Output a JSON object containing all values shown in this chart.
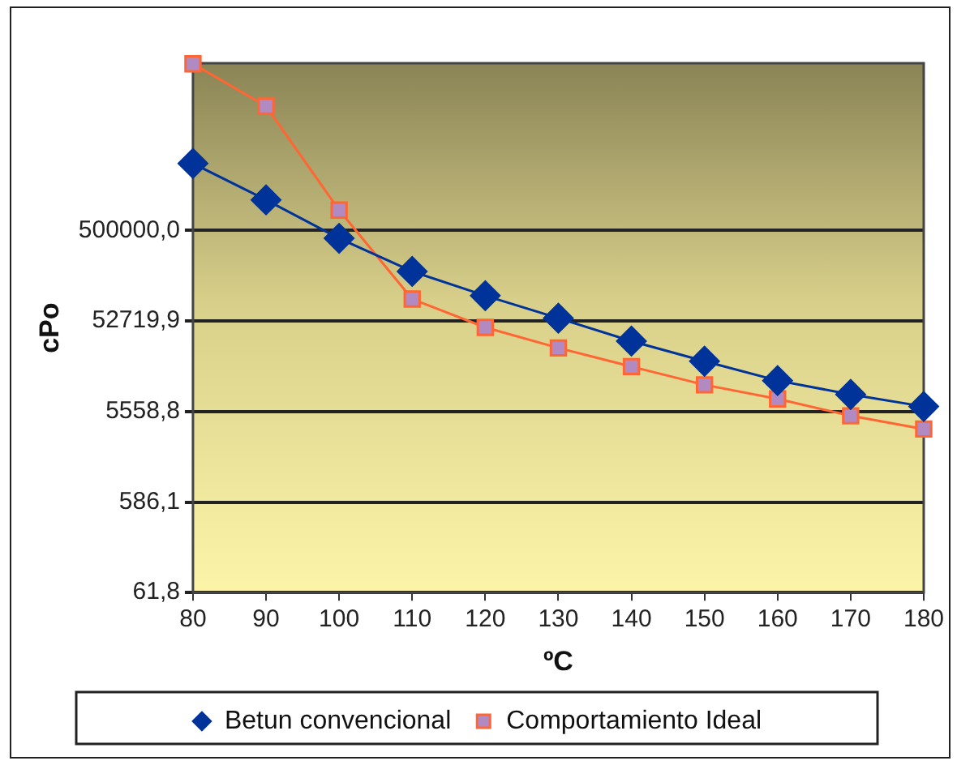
{
  "chart_data": {
    "type": "line",
    "xlabel": "ºC",
    "ylabel": "cPo",
    "categories": [
      "80",
      "90",
      "100",
      "110",
      "120",
      "130",
      "140",
      "150",
      "160",
      "170",
      "180"
    ],
    "series": [
      {
        "name": "Betun convencional",
        "color": "#003399",
        "marker": "diamond",
        "values": [
          2650000,
          1070000,
          412000,
          181000,
          99000,
          56600,
          32000,
          19400,
          12000,
          8500,
          6300
        ]
      },
      {
        "name": "Comportamiento Ideal",
        "color": "#ff6633",
        "marker": "square",
        "values": [
          31500000,
          11000000,
          830000,
          91000,
          45000,
          27000,
          17000,
          10800,
          7600,
          5000,
          3600
        ]
      }
    ],
    "log": "y",
    "ylim": [
      61.8,
      32000000
    ],
    "yticks": [
      {
        "value": 61.8,
        "label": "61,8"
      },
      {
        "value": 586.1,
        "label": "586,1"
      },
      {
        "value": 5558.8,
        "label": "5558,8"
      },
      {
        "value": 52719.9,
        "label": "52719,9"
      },
      {
        "value": 500000,
        "label": "500000,0"
      }
    ],
    "grid": "y",
    "legend": "bottom",
    "line_style": "solid"
  }
}
